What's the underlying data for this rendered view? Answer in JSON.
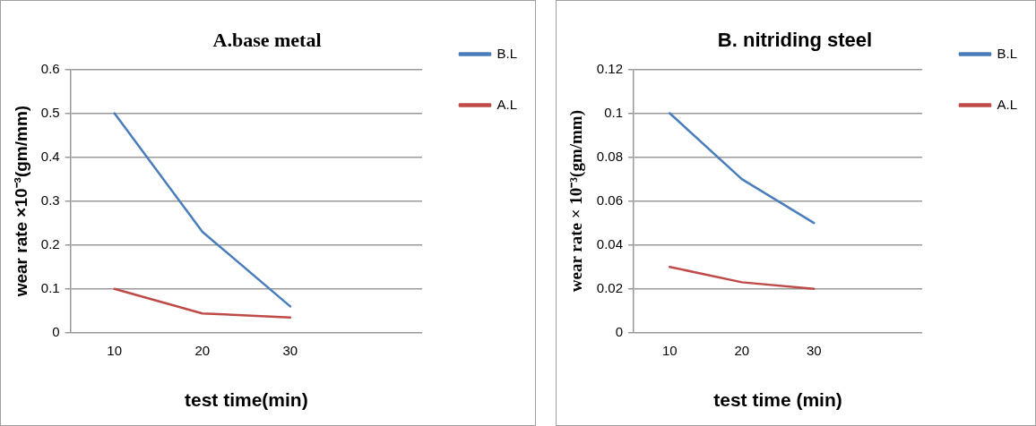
{
  "chart_data": [
    {
      "type": "line",
      "title": "A.base metal",
      "xlabel": "test time(min)",
      "ylabel": "wear rate ×10⁻³(gm/mm)",
      "categories": [
        "10",
        "20",
        "30",
        null
      ],
      "ylim": [
        0,
        0.6
      ],
      "yticks": [
        0,
        0.1,
        0.2,
        0.3,
        0.4,
        0.5,
        0.6
      ],
      "grid": "y",
      "legend": "top right",
      "marker": "none",
      "line_style": "solid",
      "series": [
        {
          "name": "B.L",
          "color": "#4a7ebb",
          "values": [
            0.5,
            0.23,
            0.06,
            null
          ]
        },
        {
          "name": "A.L",
          "color": "#be4b48",
          "values": [
            0.1,
            0.044,
            0.035,
            null
          ]
        }
      ]
    },
    {
      "type": "line",
      "title": "B. nitriding steel",
      "xlabel": "test time (min)",
      "ylabel": "wear rate × 10⁻³(gm/mm)",
      "categories": [
        "10",
        "20",
        "30",
        null
      ],
      "ylim": [
        0,
        0.12
      ],
      "yticks": [
        0,
        0.02,
        0.04,
        0.06,
        0.08,
        0.1,
        0.12
      ],
      "grid": "y",
      "legend": "top right",
      "marker": "none",
      "line_style": "solid",
      "series": [
        {
          "name": "B.L",
          "color": "#4a7ebb",
          "values": [
            0.1,
            0.07,
            0.05,
            null
          ]
        },
        {
          "name": "A.L",
          "color": "#be4b48",
          "values": [
            0.03,
            0.023,
            0.02,
            null
          ]
        }
      ]
    }
  ]
}
